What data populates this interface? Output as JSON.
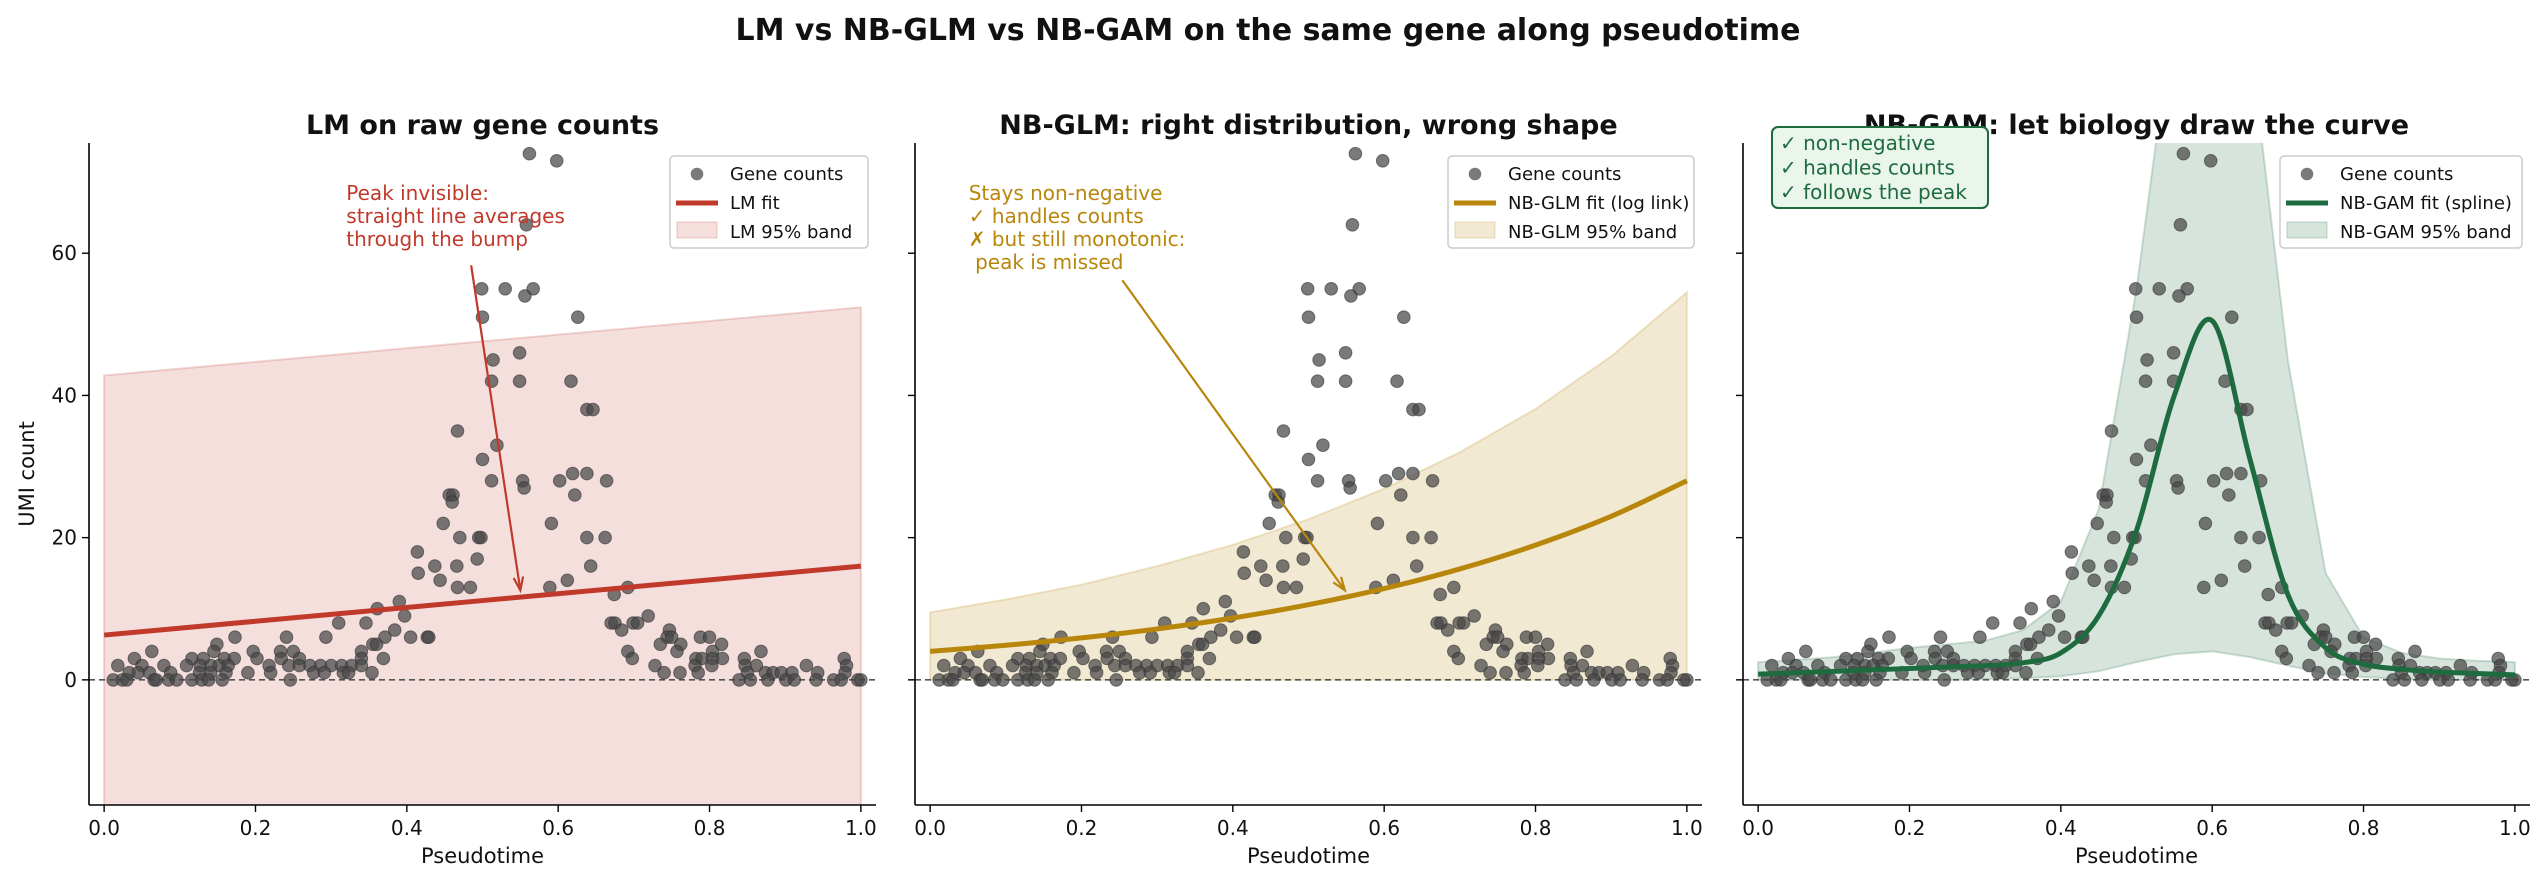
{
  "title": "LM vs NB-GLM vs NB-GAM on the same gene along pseudotime",
  "chart_data": [
    {
      "type": "scatter",
      "title": "LM on raw gene counts",
      "xlabel": "Pseudotime",
      "ylabel": "UMI count",
      "xlim": [
        -0.02,
        1.02
      ],
      "ylim": [
        -17.6,
        75.5
      ],
      "xticks": [
        "0.0",
        "0.2",
        "0.4",
        "0.6",
        "0.8",
        "1.0"
      ],
      "yticks": [
        "0",
        "20",
        "40",
        "60"
      ],
      "grid": false,
      "legend_position": "top-right",
      "color": "#c0392b",
      "legend": [
        "Gene counts",
        "LM fit",
        "LM 95% band"
      ],
      "fit": {
        "x": [
          0,
          1
        ],
        "y": [
          6.3,
          16.0
        ]
      },
      "band": {
        "x": [
          0,
          1
        ],
        "upper": [
          42.8,
          52.4
        ],
        "lower": [
          -30,
          -20
        ]
      },
      "annotation": {
        "lines": [
          "Peak invisible:",
          "straight line averages",
          "through the bump"
        ],
        "text_xy": [
          0.32,
          67.5
        ],
        "arrow_from": [
          0.485,
          58.3
        ],
        "arrow_to": [
          0.55,
          12.6
        ]
      }
    },
    {
      "type": "scatter",
      "title": "NB-GLM: right distribution, wrong shape",
      "xlabel": "Pseudotime",
      "xlim": [
        -0.02,
        1.02
      ],
      "ylim": [
        -17.6,
        75.5
      ],
      "xticks": [
        "0.0",
        "0.2",
        "0.4",
        "0.6",
        "0.8",
        "1.0"
      ],
      "grid": false,
      "legend_position": "top-right",
      "color": "#b8860b",
      "legend": [
        "Gene counts",
        "NB-GLM fit (log link)",
        "NB-GLM 95% band"
      ],
      "fit": {
        "x": [
          0,
          0.1,
          0.2,
          0.3,
          0.4,
          0.5,
          0.6,
          0.7,
          0.8,
          0.9,
          1.0
        ],
        "y": [
          4.0,
          4.86,
          5.9,
          7.16,
          8.7,
          10.57,
          12.84,
          15.6,
          18.95,
          23.0,
          28.0
        ]
      },
      "band": {
        "x": [
          0,
          0.1,
          0.2,
          0.3,
          0.4,
          0.5,
          0.6,
          0.7,
          0.8,
          0.9,
          1.0
        ],
        "upper": [
          9.5,
          11.3,
          13.4,
          16.0,
          19.0,
          22.6,
          26.9,
          32.0,
          38.1,
          45.5,
          54.5
        ],
        "lower": [
          0,
          0,
          0,
          0,
          0,
          0,
          0,
          0,
          0,
          0,
          0
        ]
      },
      "annotation": {
        "lines": [
          "Stays non-negative",
          "✓ handles counts",
          "✗ but still monotonic:",
          "   peak is missed"
        ],
        "text_xy": [
          0.051,
          67.5
        ],
        "arrow_from": [
          0.254,
          56.2
        ],
        "arrow_to": [
          0.548,
          12.6
        ]
      }
    },
    {
      "type": "scatter",
      "title": "NB-GAM: let biology draw the curve",
      "xlabel": "Pseudotime",
      "xlim": [
        -0.02,
        1.02
      ],
      "ylim": [
        -17.6,
        75.5
      ],
      "xticks": [
        "0.0",
        "0.2",
        "0.4",
        "0.6",
        "0.8",
        "1.0"
      ],
      "grid": false,
      "legend_position": "top-right",
      "color": "#1e6b3f",
      "legend": [
        "Gene counts",
        "NB-GAM fit (spline)",
        "NB-GAM 95% band"
      ],
      "fit": {
        "x": [
          0,
          0.05,
          0.1,
          0.15,
          0.2,
          0.25,
          0.3,
          0.35,
          0.4,
          0.45,
          0.5,
          0.55,
          0.6,
          0.65,
          0.7,
          0.75,
          0.8,
          0.85,
          0.9,
          0.95,
          1.0
        ],
        "y": [
          0.8,
          1.0,
          1.2,
          1.4,
          1.6,
          1.8,
          2.0,
          2.4,
          3.8,
          9,
          21,
          40,
          50.5,
          31,
          12,
          4.5,
          2.2,
          1.5,
          1.1,
          0.9,
          0.7
        ]
      },
      "band": {
        "x": [
          0,
          0.05,
          0.1,
          0.15,
          0.2,
          0.25,
          0.3,
          0.35,
          0.4,
          0.45,
          0.5,
          0.55,
          0.6,
          0.65,
          0.7,
          0.75,
          0.8,
          0.85,
          0.9,
          0.95,
          1.0
        ],
        "upper": [
          2.5,
          2.8,
          3.2,
          3.8,
          4.5,
          5.0,
          5.5,
          7,
          11,
          24,
          55,
          95,
          110,
          90,
          45,
          15,
          6,
          3.8,
          3,
          2.7,
          2.5
        ],
        "lower": [
          0,
          0,
          0,
          0,
          0,
          0,
          0.1,
          0.2,
          0.5,
          1.2,
          2.5,
          3.6,
          4,
          3.2,
          2,
          0.9,
          0.4,
          0.1,
          0,
          0,
          0
        ]
      },
      "annotation": {
        "lines": [
          "✓ non-negative",
          "✓ handles counts",
          "✓ follows the peak"
        ]
      }
    }
  ],
  "points": {
    "x": [
      0.562,
      0.598,
      0.558,
      0.499,
      0.53,
      0.567,
      0.556,
      0.5,
      0.626,
      0.514,
      0.549,
      0.512,
      0.549,
      0.617,
      0.638,
      0.646,
      0.467,
      0.519,
      0.5,
      0.512,
      0.553,
      0.555,
      0.602,
      0.619,
      0.638,
      0.664,
      0.456,
      0.461,
      0.46,
      0.622,
      0.448,
      0.591,
      0.47,
      0.495,
      0.498,
      0.638,
      0.662,
      0.414,
      0.493,
      0.415,
      0.437,
      0.466,
      0.643,
      0.444,
      0.612,
      0.467,
      0.484,
      0.589,
      0.692,
      0.39,
      0.674,
      0.361,
      0.397,
      0.719,
      0.31,
      0.346,
      0.67,
      0.675,
      0.699,
      0.705,
      0.384,
      0.684,
      0.747,
      0.355,
      0.36,
      0.293,
      0.173,
      0.241,
      0.371,
      0.405,
      0.427,
      0.429,
      0.744,
      0.75,
      0.788,
      0.8,
      0.063,
      0.149,
      0.735,
      0.762,
      0.816,
      0.692,
      0.757,
      0.804,
      0.868,
      0.197,
      0.233,
      0.25,
      0.34,
      0.145,
      0.04,
      0.116,
      0.131,
      0.159,
      0.172,
      0.202,
      0.234,
      0.258,
      0.34,
      0.369,
      0.698,
      0.782,
      0.79,
      0.817,
      0.846,
      0.978,
      0.804,
      0.018,
      0.05,
      0.079,
      0.109,
      0.127,
      0.141,
      0.152,
      0.164,
      0.218,
      0.244,
      0.258,
      0.272,
      0.286,
      0.3,
      0.314,
      0.327,
      0.34,
      0.728,
      0.781,
      0.803,
      0.847,
      0.862,
      0.928,
      0.981,
      0.033,
      0.045,
      0.06,
      0.088,
      0.126,
      0.141,
      0.161,
      0.19,
      0.22,
      0.277,
      0.291,
      0.316,
      0.323,
      0.354,
      0.74,
      0.761,
      0.785,
      0.85,
      0.874,
      0.884,
      0.895,
      0.909,
      0.943,
      0.979,
      0.012,
      0.024,
      0.03,
      0.066,
      0.069,
      0.085,
      0.096,
      0.116,
      0.129,
      0.138,
      0.156,
      0.246,
      0.839,
      0.854,
      0.877,
      0.901,
      0.912,
      0.941,
      0.964,
      0.974,
      0.996,
      1.0
    ],
    "y": [
      74,
      73,
      64,
      55,
      55,
      55,
      54,
      51,
      51,
      45,
      46,
      42,
      42,
      42,
      38,
      38,
      35,
      33,
      31,
      28,
      28,
      27,
      28,
      29,
      29,
      28,
      26,
      26,
      25,
      26,
      22,
      22,
      20,
      20,
      20,
      20,
      20,
      18,
      17,
      15,
      16,
      16,
      16,
      14,
      14,
      13,
      13,
      13,
      13,
      11,
      12,
      10,
      9,
      9,
      8,
      8,
      8,
      8,
      8,
      8,
      7,
      7,
      7,
      5,
      5,
      6,
      6,
      6,
      6,
      6,
      6,
      6,
      6,
      6,
      6,
      6,
      4,
      5,
      5,
      5,
      5,
      4,
      4,
      4,
      4,
      4,
      4,
      4,
      4,
      4,
      3,
      3,
      3,
      3,
      3,
      3,
      3,
      3,
      3,
      3,
      3,
      3,
      3,
      3,
      3,
      3,
      3,
      2,
      2,
      2,
      2,
      2,
      2,
      2,
      2,
      2,
      2,
      2,
      2,
      2,
      2,
      2,
      2,
      2,
      2,
      2,
      2,
      2,
      2,
      2,
      2,
      1,
      1,
      1,
      1,
      1,
      1,
      1,
      1,
      1,
      1,
      1,
      1,
      1,
      1,
      1,
      1,
      1,
      1,
      1,
      1,
      1,
      1,
      1,
      1,
      0,
      0,
      0,
      0,
      0,
      0,
      0,
      0,
      0,
      0,
      0,
      0,
      0,
      0,
      0,
      0,
      0,
      0,
      0,
      0,
      0,
      0
    ]
  }
}
